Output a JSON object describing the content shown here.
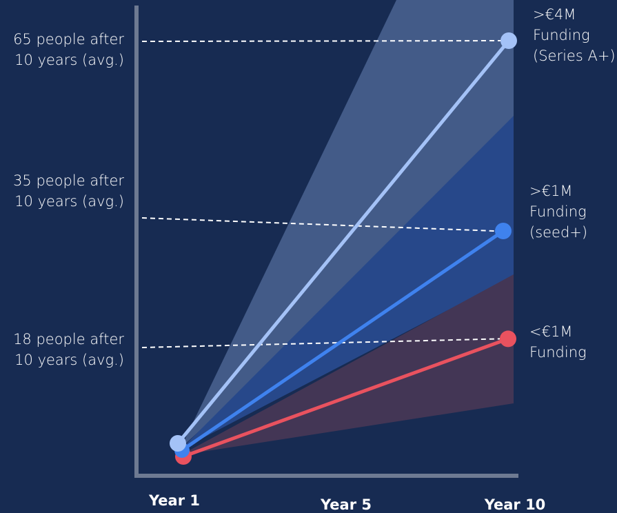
{
  "colors": {
    "background": "#172b52",
    "axis": "#6e7a92",
    "series_a": "#a4c2f7",
    "seed": "#3f82ee",
    "under_1m": "#e9525f",
    "band_a": "#435b88",
    "band_seed": "#27488a",
    "band_under": "#433655",
    "guide": "#ffffff"
  },
  "chart_data": {
    "type": "line",
    "x": [
      "Year 1",
      "Year 5",
      "Year 10"
    ],
    "xlabel": "",
    "ylabel": "",
    "series": [
      {
        "name": ">€4M Funding (Series A+)",
        "start": 2,
        "end": 65,
        "band": [
          null,
          87
        ],
        "color": "#a4c2f7"
      },
      {
        "name": ">€1M Funding (seed+)",
        "start": 1,
        "end": 35,
        "band": [
          null,
          null
        ],
        "color": "#3f82ee"
      },
      {
        "name": "<€1M Funding",
        "start": 0,
        "end": 18,
        "band": [
          null,
          null
        ],
        "color": "#e9525f"
      }
    ],
    "annotations": [
      "65 people after 10 years (avg.)",
      "35 people after 10 years (avg.)",
      "18 people after 10 years (avg.)"
    ]
  },
  "left_labels": [
    "65 people after\n10 years (avg.)",
    "35 people after\n10 years (avg.)",
    "18 people after\n10 years (avg.)"
  ],
  "right_labels": [
    ">€4M\nFunding\n(Series A+)",
    ">€1M\nFunding\n(seed+)",
    "<€1M\nFunding"
  ],
  "x_ticks": [
    "Year 1",
    "Year 5",
    "Year 10"
  ]
}
